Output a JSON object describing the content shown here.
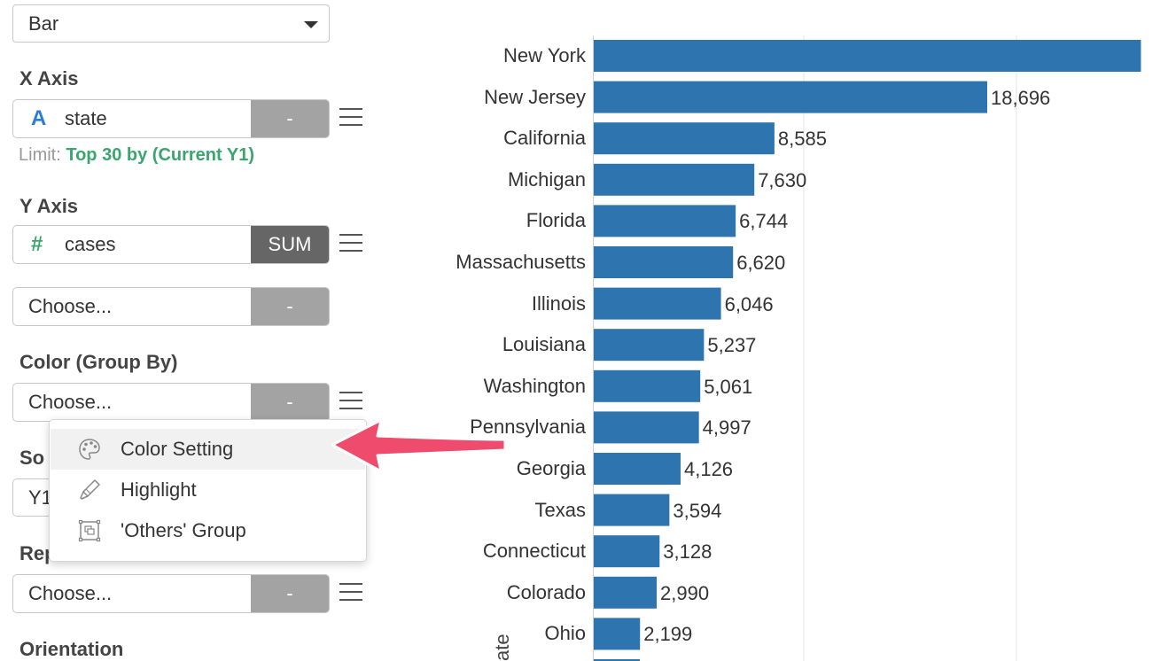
{
  "chart_type_select": {
    "value": "Bar"
  },
  "x_axis": {
    "label": "X Axis",
    "type_icon": "A",
    "field": "state",
    "aggregation": "-",
    "limit_prefix": "Limit:",
    "limit_value": "Top 30 by (Current Y1)"
  },
  "y_axis": {
    "label": "Y Axis",
    "type_icon": "#",
    "field": "cases",
    "aggregation": "SUM",
    "second_field": "Choose...",
    "second_aggregation": "-"
  },
  "color": {
    "label": "Color (Group By)",
    "field": "Choose...",
    "aggregation": "-"
  },
  "sort": {
    "label_partial": "So",
    "value_partial": "Y1"
  },
  "repeat_by": {
    "label_partial": "Rep",
    "field": "Choose...",
    "aggregation": "-"
  },
  "orientation": {
    "label": "Orientation"
  },
  "context_menu": {
    "items": [
      {
        "label": "Color Setting",
        "icon": "palette-icon"
      },
      {
        "label": "Highlight",
        "icon": "highlighter-icon"
      },
      {
        "label": "'Others' Group",
        "icon": "group-box-icon"
      }
    ]
  },
  "annotation": {
    "arrow_color": "#ef4b6c"
  },
  "colors": {
    "bar": "#2e75b0",
    "accent_green": "#3aa56f"
  },
  "chart_data": {
    "type": "bar",
    "orientation": "horizontal",
    "categories": [
      "New York",
      "New Jersey",
      "California",
      "Michigan",
      "Florida",
      "Massachusetts",
      "Illinois",
      "Louisiana",
      "Washington",
      "Pennsylvania",
      "Georgia",
      "Texas",
      "Connecticut",
      "Colorado",
      "Ohio"
    ],
    "values": [
      26000,
      18696,
      8585,
      7630,
      6744,
      6620,
      6046,
      5237,
      5061,
      4997,
      4126,
      3594,
      3128,
      2990,
      2199
    ],
    "value_labels": [
      "",
      "18,696",
      "8,585",
      "7,630",
      "6,744",
      "6,620",
      "6,046",
      "5,237",
      "5,061",
      "4,997",
      "4,126",
      "3,594",
      "3,128",
      "2,990",
      "2,199"
    ],
    "ylabel_partial": "ate",
    "grid": true
  }
}
